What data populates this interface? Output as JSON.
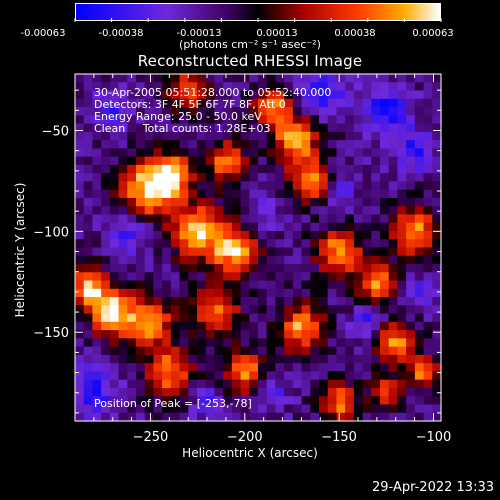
{
  "colorbar": {
    "tick_labels": [
      "-0.00063",
      "-0.00038",
      "-0.00013",
      "0.00013",
      "0.00038",
      "0.00063"
    ],
    "units_label": "(photons cm⁻² s⁻¹ asec⁻²)",
    "range": [
      -0.00063,
      0.00063
    ]
  },
  "title": "Reconstructed RHESSI Image",
  "annotations": {
    "time_range": "30-Apr-2005 05:51:28.000 to 05:52:40.000",
    "detectors": "Detectors: 3F 4F 5F 6F 7F 8F, Att 0",
    "energy_range": "Energy Range: 25.0 - 50.0 keV",
    "method": "Clean     Total counts: 1.28E+03",
    "peak": "Position of Peak = [-253,-78]"
  },
  "footer_date": "29-Apr-2022 13:33",
  "chart_data": {
    "type": "heatmap",
    "title": "Reconstructed RHESSI Image",
    "xlabel": "Heliocentric X (arcsec)",
    "ylabel": "Heliocentric Y (arcsec)",
    "xlim": [
      -290,
      -96
    ],
    "ylim": [
      -194,
      -22
    ],
    "xticks": [
      -250,
      -200,
      -150,
      -100
    ],
    "yticks": [
      -50,
      -100,
      -150
    ],
    "grid": false,
    "colormap": "blue-purple-black-red-orange-yellow-white",
    "peak": {
      "x": -253,
      "y": -78
    },
    "hot_regions": [
      {
        "x": -251,
        "y": -79,
        "r": 14,
        "v": 1.0
      },
      {
        "x": -238,
        "y": -72,
        "r": 10,
        "v": 0.82
      },
      {
        "x": -225,
        "y": -100,
        "r": 14,
        "v": 0.85
      },
      {
        "x": -205,
        "y": -110,
        "r": 12,
        "v": 0.8
      },
      {
        "x": -270,
        "y": -140,
        "r": 12,
        "v": 0.9
      },
      {
        "x": -283,
        "y": -128,
        "r": 10,
        "v": 0.85
      },
      {
        "x": -250,
        "y": -145,
        "r": 12,
        "v": 0.75
      },
      {
        "x": -215,
        "y": -140,
        "r": 12,
        "v": 0.72
      },
      {
        "x": -240,
        "y": -170,
        "r": 12,
        "v": 0.7
      },
      {
        "x": -200,
        "y": -170,
        "r": 10,
        "v": 0.72
      },
      {
        "x": -173,
        "y": -55,
        "r": 12,
        "v": 0.82
      },
      {
        "x": -165,
        "y": -75,
        "r": 10,
        "v": 0.78
      },
      {
        "x": -185,
        "y": -38,
        "r": 10,
        "v": 0.7
      },
      {
        "x": -210,
        "y": -65,
        "r": 10,
        "v": 0.68
      },
      {
        "x": -150,
        "y": -110,
        "r": 12,
        "v": 0.75
      },
      {
        "x": -110,
        "y": -100,
        "r": 12,
        "v": 0.8
      },
      {
        "x": -130,
        "y": -125,
        "r": 10,
        "v": 0.7
      },
      {
        "x": -170,
        "y": -148,
        "r": 12,
        "v": 0.75
      },
      {
        "x": -120,
        "y": -155,
        "r": 10,
        "v": 0.72
      },
      {
        "x": -150,
        "y": -185,
        "r": 10,
        "v": 0.65
      },
      {
        "x": -125,
        "y": -180,
        "r": 8,
        "v": 0.6
      },
      {
        "x": -105,
        "y": -170,
        "r": 8,
        "v": 0.7
      },
      {
        "x": -230,
        "y": -30,
        "r": 10,
        "v": 0.6
      }
    ],
    "cold_regions": [
      {
        "x": -160,
        "y": -30,
        "r": 12,
        "v": -0.85
      },
      {
        "x": -125,
        "y": -40,
        "r": 12,
        "v": -0.9
      },
      {
        "x": -270,
        "y": -40,
        "r": 10,
        "v": -0.7
      },
      {
        "x": -260,
        "y": -100,
        "r": 10,
        "v": -0.75
      },
      {
        "x": -280,
        "y": -180,
        "r": 12,
        "v": -0.8
      },
      {
        "x": -150,
        "y": -80,
        "r": 8,
        "v": -0.7
      },
      {
        "x": -135,
        "y": -145,
        "r": 8,
        "v": -0.7
      },
      {
        "x": -110,
        "y": -60,
        "r": 10,
        "v": -0.75
      },
      {
        "x": -190,
        "y": -90,
        "r": 8,
        "v": -0.6
      },
      {
        "x": -220,
        "y": -185,
        "r": 8,
        "v": -0.65
      },
      {
        "x": -185,
        "y": -180,
        "r": 8,
        "v": -0.6
      },
      {
        "x": -105,
        "y": -130,
        "r": 8,
        "v": -0.65
      }
    ]
  }
}
